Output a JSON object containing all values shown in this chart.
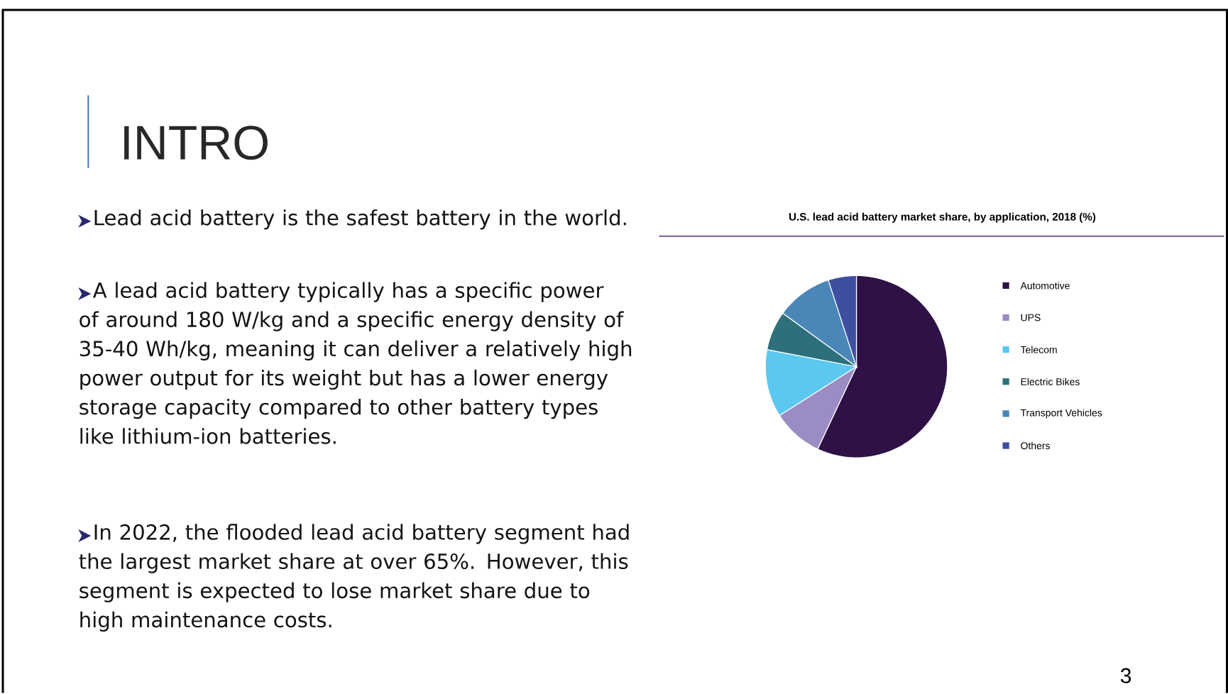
{
  "chart_data": {
    "type": "pie",
    "title": "U.S. lead acid battery market share, by application, 2018 (%)",
    "categories": [
      "Automotive",
      "UPS",
      "Telecom",
      "Electric Bikes",
      "Transport Vehicles",
      "Others"
    ],
    "values": [
      57,
      9,
      12,
      7,
      10,
      5
    ],
    "colors": [
      "#2e1245",
      "#9c8cc4",
      "#5bc8ef",
      "#2e6f7c",
      "#4a86b8",
      "#3f4fa0"
    ],
    "legend": "right",
    "annotations": [
      "INTRO",
      "Lead acid battery is the safest battery in the world.",
      "A lead acid battery typically has a specific power of around 180 W/kg and a specific energy density of 35-40 Wh/kg, meaning it can deliver a relatively high power output for its weight but has a lower energy storage capacity compared to other battery types like lithium-ion batteries.",
      "In 2022, the flooded lead acid battery segment had the largest market share at over 65%. However, this segment is expected to lose market share due to high maintenance costs.",
      "3"
    ]
  }
}
